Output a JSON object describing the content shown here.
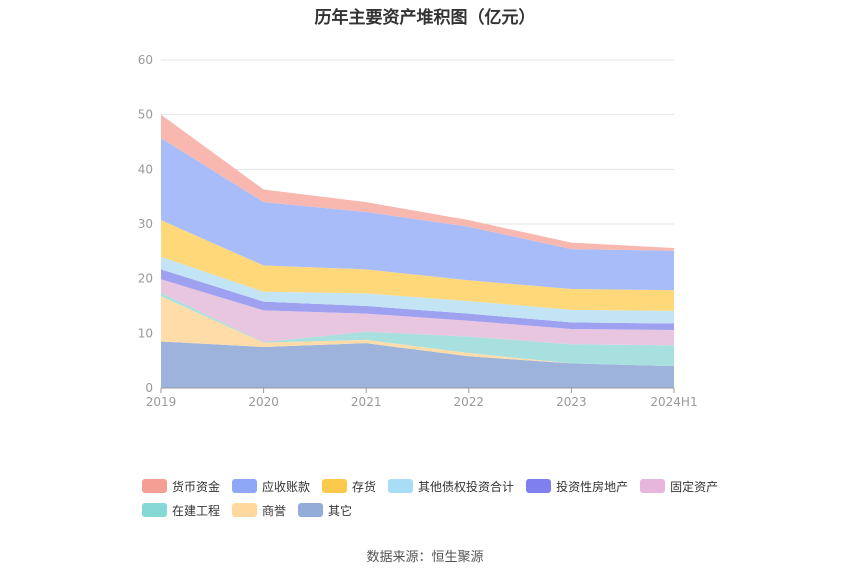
{
  "title": "历年主要资产堆积图（亿元）",
  "source": "数据来源：恒生聚源",
  "chart_data": {
    "type": "area",
    "stacked": true,
    "categories": [
      "2019",
      "2020",
      "2021",
      "2022",
      "2023",
      "2024H1"
    ],
    "ylim": [
      0,
      60
    ],
    "yticks": [
      0,
      10,
      20,
      30,
      40,
      50,
      60
    ],
    "grid": true,
    "legend_position": "bottom",
    "series": [
      {
        "name": "其它",
        "color": "#9db3dc",
        "values": [
          8.5,
          7.5,
          8.2,
          5.8,
          4.5,
          4.0
        ]
      },
      {
        "name": "商誉",
        "color": "#ffdca8",
        "values": [
          8.3,
          0.8,
          0.6,
          0.6,
          0.0,
          0.0
        ]
      },
      {
        "name": "在建工程",
        "color": "#a8e0e0",
        "values": [
          0.6,
          0.1,
          1.5,
          3.0,
          3.5,
          3.8
        ]
      },
      {
        "name": "固定资产",
        "color": "#e8c6e0",
        "values": [
          2.5,
          5.8,
          3.3,
          2.9,
          2.8,
          2.8
        ]
      },
      {
        "name": "投资性房地产",
        "color": "#9ea0f0",
        "values": [
          1.8,
          1.6,
          1.4,
          1.3,
          1.2,
          1.2
        ]
      },
      {
        "name": "其他债权投资合计",
        "color": "#c2e4f4",
        "values": [
          2.3,
          1.8,
          2.3,
          2.3,
          2.3,
          2.3
        ]
      },
      {
        "name": "存货",
        "color": "#ffd87a",
        "values": [
          6.7,
          4.8,
          4.4,
          3.8,
          3.8,
          3.8
        ]
      },
      {
        "name": "应收账款",
        "color": "#a8bcfa",
        "values": [
          15.0,
          11.6,
          10.5,
          9.8,
          7.3,
          7.2
        ]
      },
      {
        "name": "货币资金",
        "color": "#f8b8b0",
        "values": [
          4.3,
          2.3,
          1.8,
          1.2,
          1.2,
          0.5
        ]
      }
    ]
  },
  "legend": {
    "rows": [
      [
        {
          "label": "货币资金",
          "color": "#f59f94"
        },
        {
          "label": "应收账款",
          "color": "#8ea7f7"
        },
        {
          "label": "存货",
          "color": "#fcc94a"
        },
        {
          "label": "其他债权投资合计",
          "color": "#a8ddf5"
        },
        {
          "label": "投资性房地产",
          "color": "#7f7ff0"
        },
        {
          "label": "固定资产",
          "color": "#e8b5dc"
        }
      ],
      [
        {
          "label": "在建工程",
          "color": "#85d8d6"
        },
        {
          "label": "商誉",
          "color": "#ffd89e"
        },
        {
          "label": "其它",
          "color": "#94add8"
        }
      ]
    ]
  }
}
